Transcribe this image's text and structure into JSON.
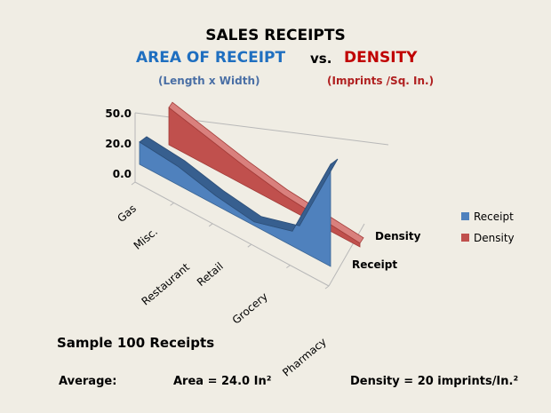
{
  "header": {
    "title": "SALES RECEIPTS",
    "area_heading": "AREA OF RECEIPT",
    "vs": "vs.",
    "density_heading": "DENSITY",
    "area_sub": "(Length x Width)",
    "density_sub": "(Imprints /Sq. In.)"
  },
  "footer": {
    "sample": "Sample 100 Receipts",
    "average_label": "Average:",
    "area_avg": "Area = 24.0 In²",
    "density_avg": "Density = 20 imprints/In.²"
  },
  "colors": {
    "receipt": "#4f81bd",
    "density": "#c0504d"
  },
  "chart_data": {
    "type": "area",
    "categories": [
      "Gas",
      "Misc.",
      "Restaurant",
      "Retail",
      "Grocery",
      "Pharmacy"
    ],
    "series": [
      {
        "name": "Receipt",
        "values": [
          12,
          10,
          5,
          2,
          8,
          55
        ]
      },
      {
        "name": "Density",
        "values": [
          20,
          15,
          10,
          6,
          4,
          2
        ]
      }
    ],
    "y_ticks": [
      "0.0",
      "20.0",
      "50.0"
    ],
    "depth_labels": [
      "Receipt",
      "Density"
    ],
    "legend": [
      "Receipt",
      "Density"
    ],
    "legend_position": "right",
    "ylim": [
      0,
      55
    ]
  }
}
